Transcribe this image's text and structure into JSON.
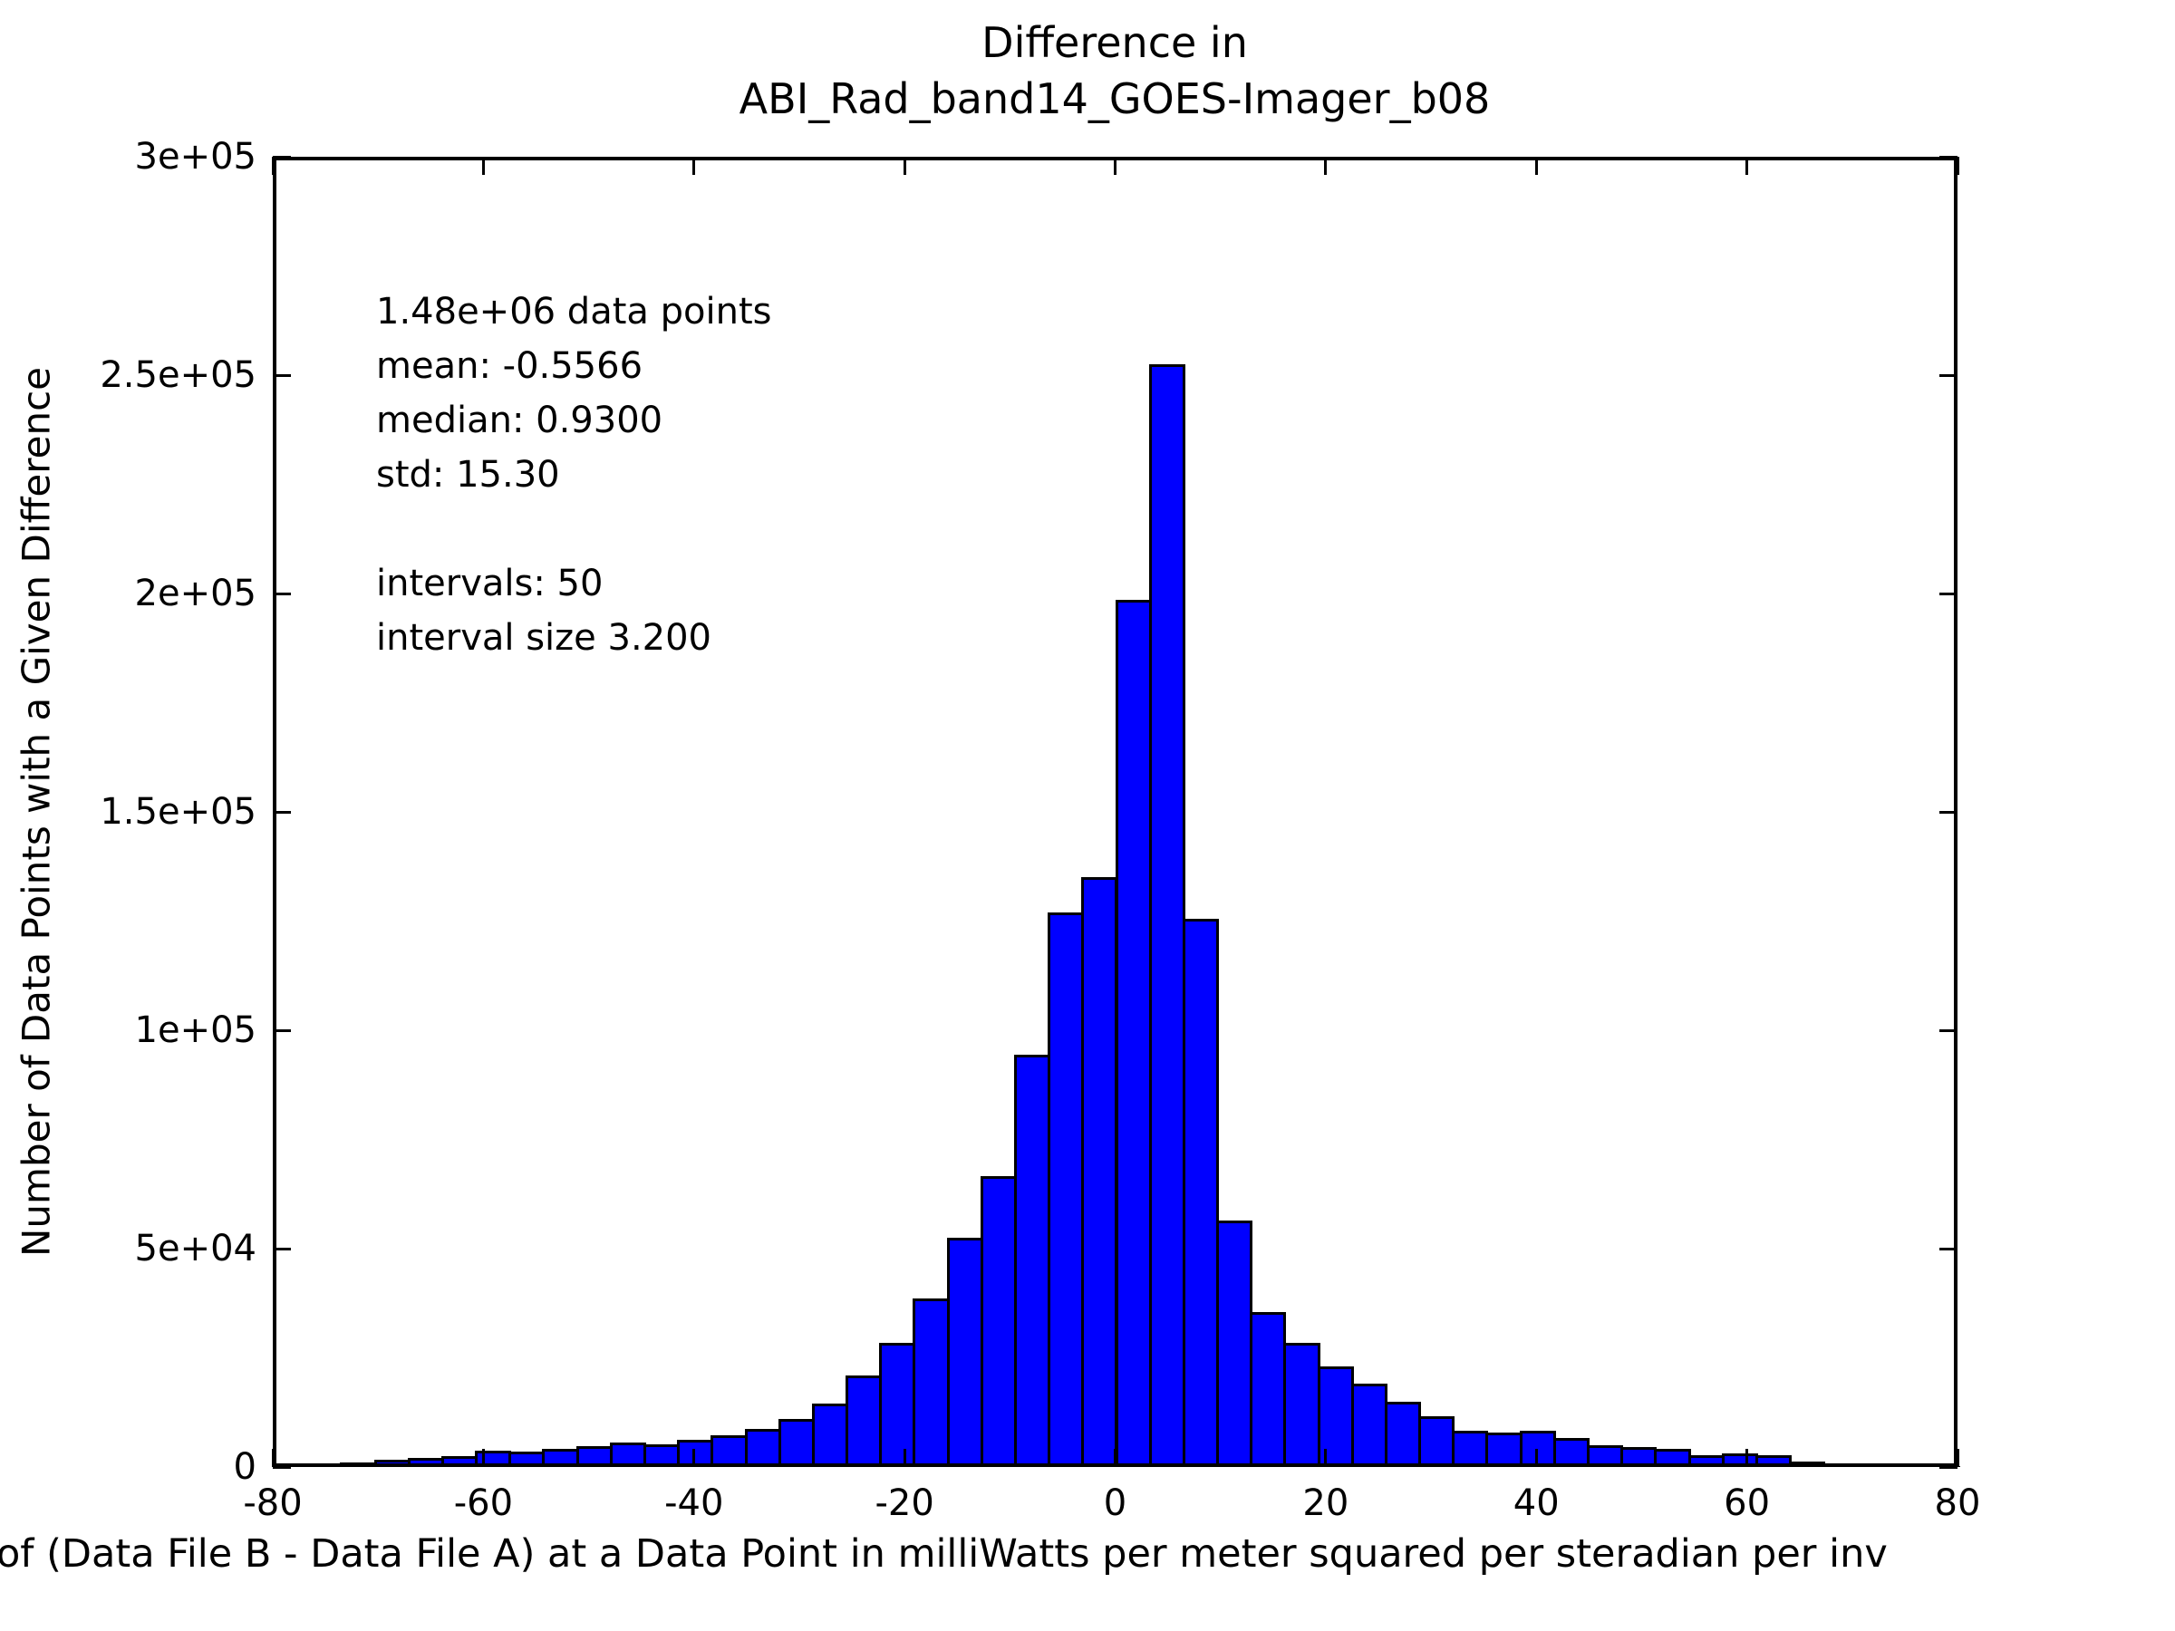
{
  "title": {
    "line1": "Difference in",
    "line2": "ABI_Rad_band14_GOES-Imager_b08"
  },
  "y_axis_label": "Number of Data Points with a Given Difference",
  "x_axis_label_visible": "of (Data File B - Data File A) at a Data Point in milliWatts per meter squared per steradian per inv",
  "annotation": {
    "lines": [
      "1.48e+06 data points",
      "mean: -0.5566",
      "median: 0.9300",
      "std: 15.30",
      "",
      "intervals: 50",
      "interval size 3.200"
    ]
  },
  "colors": {
    "bar_fill": "#0000ff",
    "bar_edge": "#000000",
    "text": "#000000",
    "background": "#ffffff"
  },
  "chart_data": {
    "type": "bar",
    "subtype": "histogram",
    "title": "Difference in ABI_Rad_band14_GOES-Imager_b08",
    "xlabel": "of (Data File B - Data File A) at a Data Point in milliWatts per meter squared per steradian per inv",
    "ylabel": "Number of Data Points with a Given Difference",
    "xlim": [
      -80,
      80
    ],
    "ylim": [
      0,
      300000
    ],
    "grid": false,
    "legend": false,
    "n_intervals": 50,
    "interval_size": 3.2,
    "bin_start": -80,
    "bin_edges_note": "50 contiguous bins of width 3.2 spanning -80 to 80",
    "counts": [
      150,
      400,
      1000,
      1600,
      2100,
      2500,
      3700,
      3500,
      4200,
      4700,
      5700,
      5200,
      6200,
      7200,
      8800,
      11000,
      14500,
      21000,
      28500,
      38500,
      52500,
      66500,
      94500,
      127000,
      135000,
      198500,
      252500,
      125500,
      56500,
      35500,
      28500,
      23000,
      19000,
      15000,
      11700,
      8400,
      7900,
      8400,
      6600,
      5000,
      4600,
      4100,
      2700,
      3200,
      2700,
      1200,
      700,
      350,
      200,
      100
    ],
    "stats": {
      "data_points": "1.48e+06",
      "mean": -0.5566,
      "median": 0.93,
      "std": 15.3
    },
    "x_ticks": [
      {
        "value": -80,
        "label": "-80"
      },
      {
        "value": -60,
        "label": "-60"
      },
      {
        "value": -40,
        "label": "-40"
      },
      {
        "value": -20,
        "label": "-20"
      },
      {
        "value": 0,
        "label": "0"
      },
      {
        "value": 20,
        "label": "20"
      },
      {
        "value": 40,
        "label": "40"
      },
      {
        "value": 60,
        "label": "60"
      },
      {
        "value": 80,
        "label": "80"
      }
    ],
    "y_ticks": [
      {
        "value": 0,
        "label": "0"
      },
      {
        "value": 50000,
        "label": "5e+04"
      },
      {
        "value": 100000,
        "label": "1e+05"
      },
      {
        "value": 150000,
        "label": "1.5e+05"
      },
      {
        "value": 200000,
        "label": "2e+05"
      },
      {
        "value": 250000,
        "label": "2.5e+05"
      },
      {
        "value": 300000,
        "label": "3e+05"
      }
    ]
  }
}
